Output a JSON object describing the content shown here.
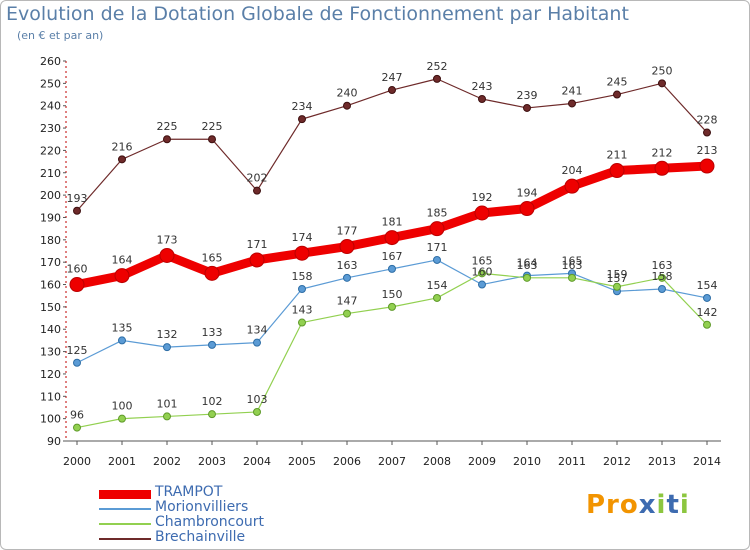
{
  "title": "Evolution de la Dotation Globale de Fonctionnement par Habitant",
  "subtitle": "(en € et par an)",
  "logo": "Proxiti",
  "chart_data": {
    "type": "line",
    "title": "Evolution de la Dotation Globale de Fonctionnement par Habitant",
    "subtitle": "(en € et par an)",
    "xlabel": "",
    "ylabel": "",
    "x": [
      "2000",
      "2001",
      "2002",
      "2003",
      "2004",
      "2005",
      "2006",
      "2007",
      "2008",
      "2009",
      "2010",
      "2011",
      "2012",
      "2013",
      "2014"
    ],
    "ylim": [
      90,
      260
    ],
    "yticks": [
      90,
      100,
      110,
      120,
      130,
      140,
      150,
      160,
      170,
      180,
      190,
      200,
      210,
      220,
      230,
      240,
      250,
      260
    ],
    "grid": false,
    "legend_position": "bottom-left",
    "series": [
      {
        "name": "TRAMPOT",
        "color": "#ee0000",
        "values": [
          160,
          164,
          173,
          165,
          171,
          174,
          177,
          181,
          185,
          192,
          194,
          204,
          211,
          212,
          213
        ]
      },
      {
        "name": "Morionvilliers",
        "color": "#5b9bd5",
        "values": [
          125,
          135,
          132,
          133,
          134,
          158,
          163,
          167,
          171,
          160,
          164,
          165,
          157,
          158,
          154
        ]
      },
      {
        "name": "Chambroncourt",
        "color": "#92d050",
        "values": [
          96,
          100,
          101,
          102,
          103,
          143,
          147,
          150,
          154,
          165,
          163,
          163,
          159,
          163,
          142
        ]
      },
      {
        "name": "Brechainville",
        "color": "#6e2a2a",
        "values": [
          193,
          216,
          225,
          225,
          202,
          234,
          240,
          247,
          252,
          243,
          239,
          241,
          245,
          250,
          228
        ]
      }
    ]
  }
}
